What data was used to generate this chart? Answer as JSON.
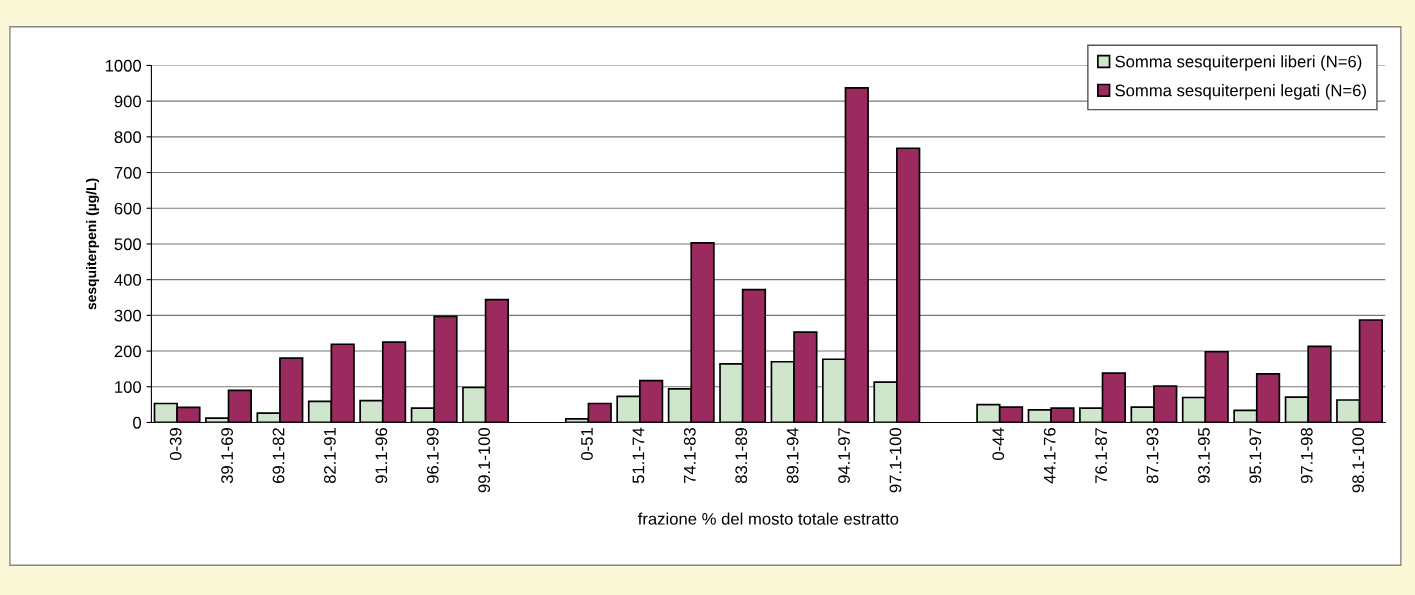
{
  "chart_data": {
    "type": "bar",
    "xlabel": "frazione % del mosto totale estratto",
    "ylabel": "sesquiterpeni (µg/L)",
    "categories": [
      "0-39",
      "39.1-69",
      "69.1-82",
      "82.1-91",
      "91.1-96",
      "96.1-99",
      "99.1-100",
      null,
      "0-51",
      "51.1-74",
      "74.1-83",
      "83.1-89",
      "89.1-94",
      "94.1-97",
      "97.1-100",
      null,
      "0-44",
      "44.1-76",
      "76.1-87",
      "87.1-93",
      "93.1-95",
      "95.1-97",
      "97.1-98",
      "98.1-100"
    ],
    "series": [
      {
        "name": "Somma sesquiterpeni liberi (N=6)",
        "color": "#cfe5cc",
        "values": [
          53,
          12,
          26,
          59,
          61,
          40,
          98,
          null,
          10,
          73,
          94,
          164,
          170,
          177,
          113,
          null,
          50,
          35,
          40,
          43,
          70,
          34,
          71,
          63
        ]
      },
      {
        "name": "Somma sesquiterpeni legati (N=6)",
        "color": "#9b2a5e",
        "values": [
          42,
          90,
          180,
          219,
          225,
          297,
          344,
          null,
          53,
          117,
          503,
          372,
          253,
          937,
          768,
          null,
          43,
          40,
          138,
          102,
          198,
          136,
          213,
          287
        ]
      }
    ],
    "ylim": [
      0,
      1000
    ],
    "yticks": [
      0,
      100,
      200,
      300,
      400,
      500,
      600,
      700,
      800,
      900,
      1000
    ],
    "grid": "y",
    "legend": "top right"
  }
}
